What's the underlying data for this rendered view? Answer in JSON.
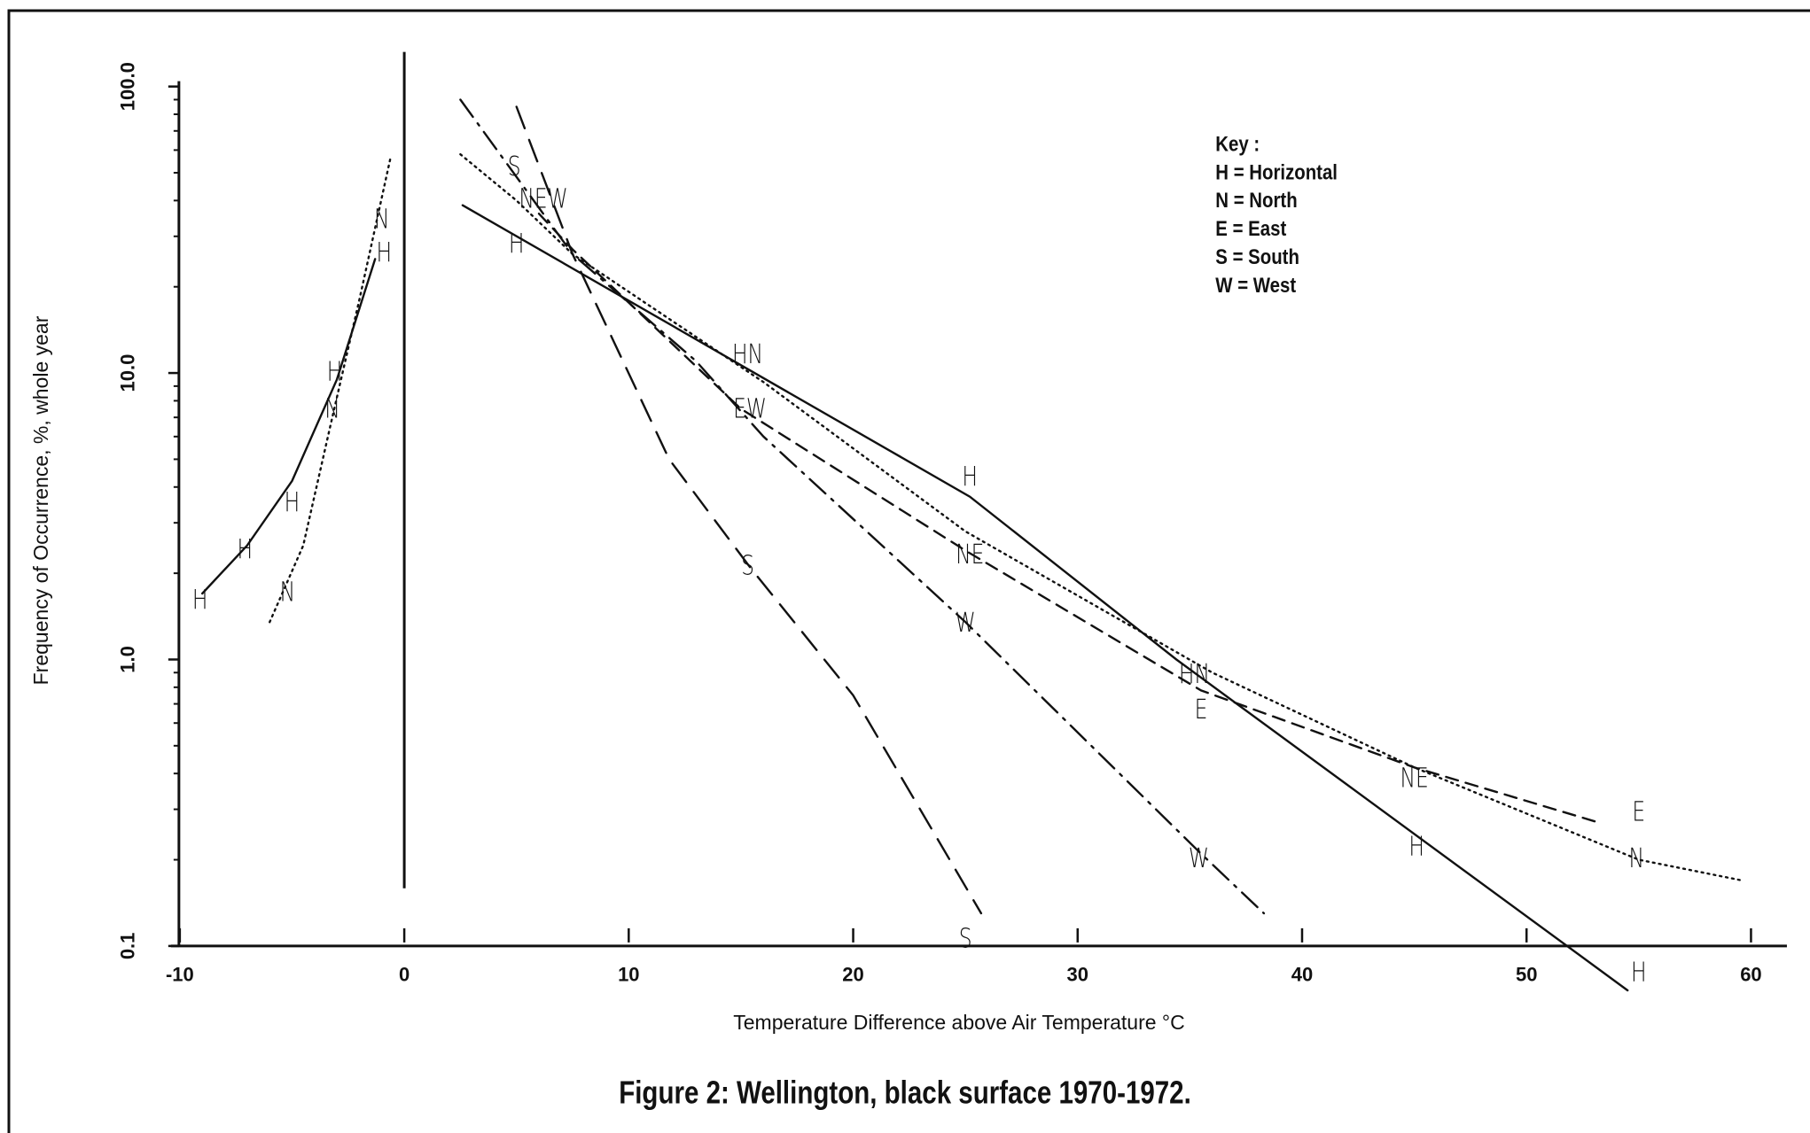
{
  "chart_data": {
    "type": "line",
    "title": "Figure 2: Wellington, black surface 1970-1972.",
    "xlabel": "Temperature Difference above Air Temperature °C",
    "ylabel": "Frequency of Occurrence, %, whole year",
    "xlim": [
      -10.4,
      61.6
    ],
    "ylim": [
      0.1,
      100
    ],
    "ylog": true,
    "grid": false,
    "xticks": [
      -10,
      0,
      10,
      20,
      30,
      40,
      50,
      60
    ],
    "yticks": [
      {
        "value": 0.1,
        "label": "0.1"
      },
      {
        "value": 1,
        "label": "1.0"
      },
      {
        "value": 10,
        "label": "10.0"
      },
      {
        "value": 100,
        "label": "100.0"
      }
    ],
    "key": [
      "Key :",
      "H = Horizontal",
      "N = North",
      "E = East",
      "S = South",
      "W = West"
    ],
    "series": [
      {
        "color": "#111111",
        "style": "solid",
        "x": [
          -9,
          -7,
          -5,
          -3,
          -1.3,
          0,
          2.6,
          25.2,
          34.4,
          54.5
        ],
        "values": [
          1.7,
          2.5,
          4.2,
          9.5,
          25,
          null,
          38.5,
          3.7,
          1.0,
          0.07
        ]
      },
      {
        "color": "#111111",
        "style": "dotted",
        "x": [
          -6,
          -4.5,
          -3.3,
          -2,
          -0.6,
          0,
          2.5,
          5,
          7.5,
          16,
          25,
          36,
          45,
          55,
          59.5
        ],
        "values": [
          1.35,
          2.5,
          6.5,
          18,
          57,
          null,
          58,
          40,
          26,
          9.3,
          2.8,
          0.9,
          0.42,
          0.2,
          0.17
        ]
      },
      {
        "color": "#111111",
        "style": "dashed",
        "x": [
          6,
          7.5,
          15,
          25,
          35.5,
          45,
          53.2
        ],
        "values": [
          36,
          27,
          7.5,
          2.4,
          0.78,
          0.42,
          0.27
        ]
      },
      {
        "color": "#111111",
        "style": "longdash",
        "x": [
          5,
          7.5,
          11.8,
          15.4,
          20,
          25.7
        ],
        "values": [
          85,
          26,
          5,
          2.1,
          0.75,
          0.13
        ]
      },
      {
        "color": "#111111",
        "style": "dashdot",
        "x": [
          2.5,
          7.5,
          13,
          16,
          25,
          35.5,
          38.3
        ],
        "values": [
          90,
          26,
          11,
          6,
          1.35,
          0.21,
          0.13
        ]
      }
    ],
    "annotations": [
      {
        "text": "S",
        "x": 4.9,
        "y": 52
      },
      {
        "text": "NEW",
        "x": 6.2,
        "y": 40
      },
      {
        "text": "H",
        "x": 5,
        "y": 28
      },
      {
        "text": "HN",
        "x": 15.3,
        "y": 11.5
      },
      {
        "text": "EW",
        "x": 15.4,
        "y": 7.4
      },
      {
        "text": "H",
        "x": 25.2,
        "y": 4.3
      },
      {
        "text": "NE",
        "x": 25.2,
        "y": 2.3
      },
      {
        "text": "S",
        "x": 15.3,
        "y": 2.1
      },
      {
        "text": "W",
        "x": 25,
        "y": 1.33
      },
      {
        "text": "HN",
        "x": 35.2,
        "y": 0.88
      },
      {
        "text": "E",
        "x": 35.5,
        "y": 0.66
      },
      {
        "text": "NE",
        "x": 45,
        "y": 0.38
      },
      {
        "text": "E",
        "x": 55,
        "y": 0.29
      },
      {
        "text": "H",
        "x": 45.1,
        "y": 0.22
      },
      {
        "text": "W",
        "x": 35.4,
        "y": 0.2
      },
      {
        "text": "N",
        "x": 54.9,
        "y": 0.2
      },
      {
        "text": "S",
        "x": 25,
        "y": 0.105
      },
      {
        "text": "H",
        "x": 55,
        "y": 0.08
      },
      {
        "text": "N",
        "x": -1,
        "y": 34
      },
      {
        "text": "H",
        "x": -0.9,
        "y": 26
      },
      {
        "text": "H",
        "x": -3.1,
        "y": 10
      },
      {
        "text": "N",
        "x": -3.2,
        "y": 7.4
      },
      {
        "text": "H",
        "x": -5,
        "y": 3.5
      },
      {
        "text": "H",
        "x": -7.1,
        "y": 2.4
      },
      {
        "text": "H",
        "x": -9.1,
        "y": 1.6
      },
      {
        "text": "N",
        "x": -5.2,
        "y": 1.7
      }
    ]
  }
}
